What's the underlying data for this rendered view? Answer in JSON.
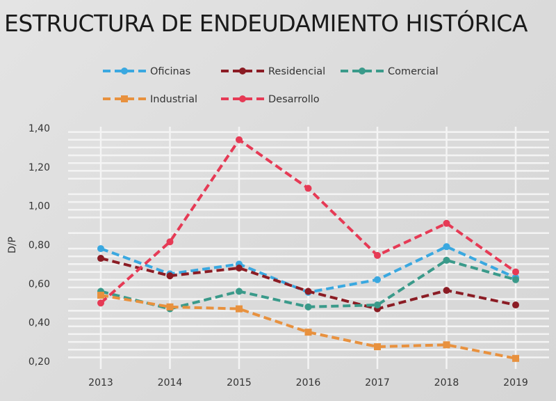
{
  "title": "ESTRUCTURA DE ENDEUDAMIENTO HISTÓRICA",
  "chart_data": {
    "type": "line",
    "title": "ESTRUCTURA DE ENDEUDAMIENTO HISTÓRICA",
    "xlabel": "",
    "ylabel": "D/P",
    "x": [
      "2013",
      "2014",
      "2015",
      "2016",
      "2017",
      "2018",
      "2019"
    ],
    "ylim": [
      0.2,
      1.4
    ],
    "yticks": [
      "0,20",
      "0,40",
      "0,60",
      "0,80",
      "1,00",
      "1,20",
      "1,40"
    ],
    "legend_position": "top",
    "grid": true,
    "series": [
      {
        "name": "Oficinas",
        "color": "#3aa8e0",
        "marker": "circle",
        "values": [
          0.78,
          0.65,
          0.7,
          0.555,
          0.62,
          0.79,
          0.63
        ]
      },
      {
        "name": "Residencial",
        "color": "#8b1c24",
        "marker": "circle",
        "values": [
          0.73,
          0.64,
          0.68,
          0.56,
          0.47,
          0.565,
          0.49
        ]
      },
      {
        "name": "Comercial",
        "color": "#3a9a8a",
        "marker": "circle",
        "values": [
          0.56,
          0.47,
          0.56,
          0.48,
          0.49,
          0.72,
          0.62
        ]
      },
      {
        "name": "Industrial",
        "color": "#e8913e",
        "marker": "square",
        "values": [
          0.54,
          0.48,
          0.47,
          0.35,
          0.275,
          0.285,
          0.215
        ]
      },
      {
        "name": "Desarrollo",
        "color": "#e63a55",
        "marker": "circle",
        "values": [
          0.5,
          0.815,
          1.34,
          1.09,
          0.745,
          0.91,
          0.66
        ]
      }
    ]
  }
}
